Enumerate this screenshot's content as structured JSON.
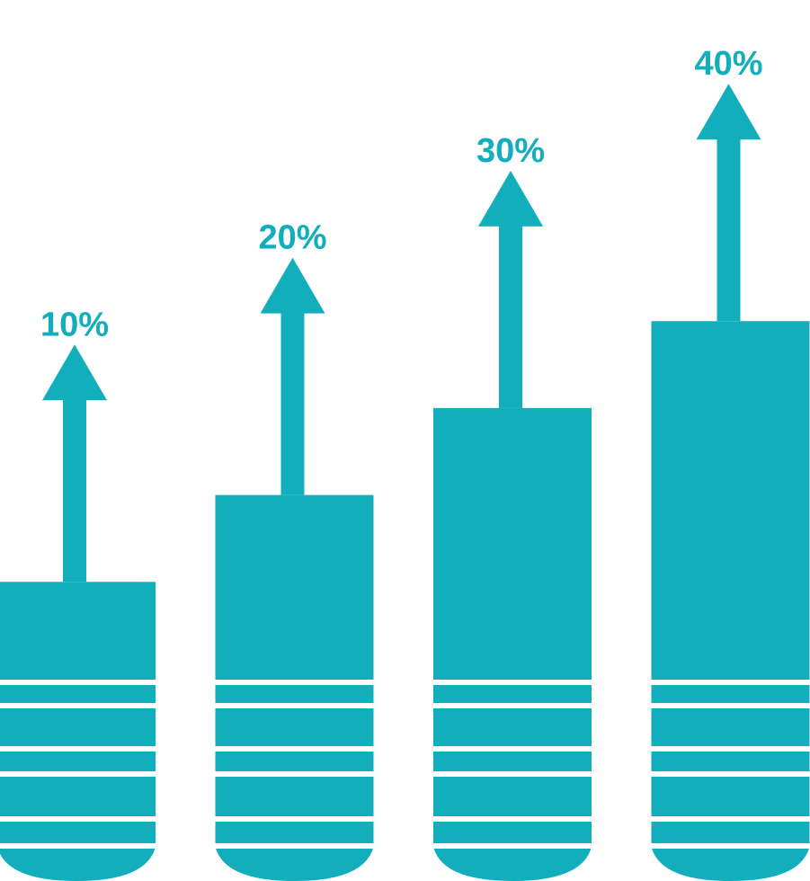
{
  "chart_data": {
    "type": "bar",
    "values": [
      10,
      20,
      30,
      40
    ],
    "value_labels": [
      "10%",
      "20%",
      "30%",
      "40%"
    ],
    "color": "#13aebb"
  }
}
